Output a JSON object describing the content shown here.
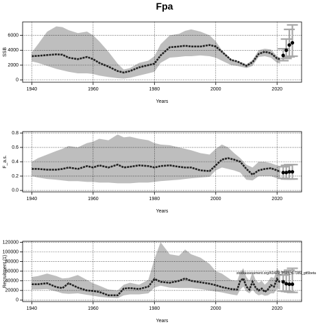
{
  "figure": {
    "title": "Fpa"
  },
  "chart_data": [
    {
      "type": "line",
      "title": "Fpa",
      "xlabel": "Years",
      "ylabel": "SSB",
      "xlim": [
        1937,
        2028
      ],
      "ylim": [
        -300,
        7800
      ],
      "xticks": [
        1940,
        1960,
        1980,
        2000,
        2020
      ],
      "yticks": [
        0,
        2000,
        4000,
        6000
      ],
      "ytick_labels": [
        "0",
        "2000",
        "4000",
        "6000"
      ],
      "grid": true,
      "series": [
        {
          "role": "band",
          "color": "#bebebe",
          "x": [
            1940,
            1942,
            1945,
            1948,
            1950,
            1952,
            1955,
            1958,
            1960,
            1962,
            1965,
            1968,
            1970,
            1972,
            1975,
            1978,
            1980,
            1982,
            1985,
            1988,
            1990,
            1992,
            1995,
            1998,
            2000,
            2002,
            2005,
            2007,
            2009,
            2010,
            2012,
            2014,
            2016,
            2018,
            2020,
            2021
          ],
          "upper": [
            3700,
            4800,
            6500,
            7200,
            7100,
            6700,
            6300,
            6500,
            6000,
            5200,
            3800,
            2200,
            1400,
            1600,
            2300,
            2600,
            3200,
            4800,
            6000,
            6200,
            6600,
            6800,
            6500,
            6000,
            5200,
            4000,
            2800,
            2500,
            2300,
            2100,
            2700,
            4000,
            4200,
            4100,
            3200,
            3000
          ],
          "lower": [
            2500,
            2300,
            1900,
            1500,
            1300,
            1100,
            900,
            900,
            800,
            600,
            400,
            250,
            200,
            300,
            600,
            900,
            1100,
            2300,
            3000,
            3100,
            3200,
            3200,
            3300,
            3200,
            3000,
            2600,
            2000,
            1900,
            1700,
            1600,
            1900,
            3100,
            3200,
            3000,
            2300,
            2200
          ]
        },
        {
          "role": "estimate",
          "color": "#222222",
          "x": [
            1940,
            1942,
            1945,
            1948,
            1950,
            1952,
            1955,
            1958,
            1960,
            1962,
            1965,
            1968,
            1970,
            1972,
            1975,
            1978,
            1980,
            1982,
            1985,
            1988,
            1990,
            1992,
            1995,
            1998,
            2000,
            2002,
            2005,
            2007,
            2009,
            2010,
            2012,
            2014,
            2016,
            2018,
            2020,
            2021
          ],
          "y": [
            3200,
            3250,
            3350,
            3450,
            3400,
            3000,
            2800,
            3100,
            2800,
            2300,
            1800,
            1200,
            1000,
            1200,
            1700,
            2000,
            2200,
            3300,
            4400,
            4500,
            4600,
            4500,
            4500,
            4700,
            4500,
            3800,
            2700,
            2500,
            2100,
            1900,
            2400,
            3500,
            3800,
            3600,
            2900,
            2800
          ]
        },
        {
          "role": "projection",
          "color": "#000000",
          "x": [
            2022,
            2023,
            2024,
            2025
          ],
          "y": [
            3300,
            4000,
            4700,
            5000
          ],
          "err_low": [
            2600,
            2900,
            3100,
            3200
          ],
          "err_high": [
            4200,
            5500,
            6800,
            7400
          ]
        }
      ]
    },
    {
      "type": "line",
      "xlabel": "Years",
      "ylabel": "F_a.s.",
      "xlim": [
        1937,
        2028
      ],
      "ylim": [
        -0.02,
        0.82
      ],
      "xticks": [
        1940,
        1960,
        1980,
        2000,
        2020
      ],
      "yticks": [
        0.0,
        0.2,
        0.4,
        0.6,
        0.8
      ],
      "ytick_labels": [
        "0.0",
        "0.2",
        "0.4",
        "0.6",
        "0.8"
      ],
      "grid": true,
      "series": [
        {
          "role": "band",
          "color": "#bebebe",
          "x": [
            1940,
            1942,
            1945,
            1948,
            1950,
            1952,
            1955,
            1958,
            1960,
            1962,
            1965,
            1968,
            1970,
            1972,
            1975,
            1978,
            1980,
            1982,
            1985,
            1988,
            1990,
            1992,
            1995,
            1998,
            2000,
            2002,
            2004,
            2006,
            2008,
            2010,
            2012,
            2014,
            2016,
            2018,
            2020,
            2021
          ],
          "upper": [
            0.4,
            0.45,
            0.5,
            0.55,
            0.58,
            0.62,
            0.6,
            0.66,
            0.68,
            0.72,
            0.7,
            0.78,
            0.74,
            0.75,
            0.72,
            0.7,
            0.66,
            0.64,
            0.63,
            0.6,
            0.58,
            0.56,
            0.52,
            0.5,
            0.58,
            0.64,
            0.6,
            0.52,
            0.45,
            0.36,
            0.32,
            0.4,
            0.4,
            0.38,
            0.35,
            0.34
          ],
          "lower": [
            0.2,
            0.18,
            0.16,
            0.15,
            0.14,
            0.13,
            0.13,
            0.12,
            0.12,
            0.11,
            0.11,
            0.1,
            0.1,
            0.1,
            0.11,
            0.11,
            0.12,
            0.13,
            0.14,
            0.15,
            0.16,
            0.17,
            0.18,
            0.19,
            0.28,
            0.32,
            0.3,
            0.28,
            0.25,
            0.15,
            0.14,
            0.2,
            0.2,
            0.2,
            0.17,
            0.16
          ]
        },
        {
          "role": "estimate",
          "color": "#222222",
          "x": [
            1940,
            1942,
            1945,
            1948,
            1950,
            1952,
            1955,
            1958,
            1960,
            1962,
            1965,
            1968,
            1970,
            1972,
            1975,
            1978,
            1980,
            1982,
            1985,
            1988,
            1990,
            1992,
            1995,
            1998,
            2000,
            2002,
            2004,
            2006,
            2008,
            2010,
            2012,
            2014,
            2016,
            2018,
            2020,
            2021
          ],
          "y": [
            0.3,
            0.3,
            0.29,
            0.29,
            0.3,
            0.32,
            0.3,
            0.34,
            0.32,
            0.35,
            0.32,
            0.36,
            0.32,
            0.33,
            0.35,
            0.34,
            0.32,
            0.34,
            0.35,
            0.33,
            0.32,
            0.32,
            0.28,
            0.27,
            0.35,
            0.43,
            0.45,
            0.43,
            0.4,
            0.3,
            0.22,
            0.28,
            0.3,
            0.31,
            0.28,
            0.26
          ]
        },
        {
          "role": "projection",
          "color": "#000000",
          "x": [
            2022,
            2023,
            2024,
            2025
          ],
          "y": [
            0.25,
            0.25,
            0.26,
            0.26
          ],
          "err_low": [
            0.17,
            0.16,
            0.16,
            0.16
          ],
          "err_high": [
            0.33,
            0.35,
            0.36,
            0.36
          ]
        }
      ]
    },
    {
      "type": "line",
      "xlabel": "Years",
      "ylabel": "Recruitment (1)",
      "xlim": [
        1937,
        2028
      ],
      "ylim": [
        -3000,
        122000
      ],
      "xticks": [
        1940,
        1960,
        1980,
        2000,
        2020
      ],
      "yticks": [
        0,
        20000,
        40000,
        60000,
        80000,
        100000,
        120000
      ],
      "ytick_labels": [
        "0",
        "20000",
        "40000",
        "60000",
        "80000",
        "100000",
        "120000"
      ],
      "grid": true,
      "annotation": "stockassessment.org/K0479_2023_r17389_gtt5beta",
      "series": [
        {
          "role": "band",
          "color": "#bebebe",
          "x": [
            1940,
            1942,
            1945,
            1948,
            1950,
            1952,
            1955,
            1958,
            1960,
            1962,
            1965,
            1968,
            1970,
            1972,
            1975,
            1978,
            1980,
            1982,
            1985,
            1988,
            1990,
            1992,
            1995,
            1998,
            2000,
            2002,
            2005,
            2007,
            2008,
            2009,
            2010,
            2011,
            2012,
            2013,
            2014,
            2015,
            2016,
            2017,
            2018,
            2019,
            2020,
            2021
          ],
          "upper": [
            48000,
            50000,
            55000,
            50000,
            45000,
            46000,
            52000,
            42000,
            35000,
            30000,
            22000,
            20000,
            32000,
            36000,
            32000,
            42000,
            85000,
            120000,
            95000,
            92000,
            105000,
            95000,
            88000,
            75000,
            60000,
            55000,
            42000,
            40000,
            58000,
            66000,
            48000,
            40000,
            58000,
            42000,
            36000,
            40000,
            32000,
            38000,
            48000,
            46000,
            66000,
            58000
          ],
          "lower": [
            22000,
            22000,
            23000,
            18000,
            14000,
            13000,
            14000,
            11000,
            9000,
            7000,
            5000,
            4000,
            10000,
            12000,
            12000,
            14000,
            26000,
            30000,
            26000,
            25000,
            25000,
            25000,
            23000,
            20000,
            18000,
            16000,
            12000,
            10000,
            22000,
            28000,
            18000,
            14000,
            22000,
            14000,
            10000,
            12000,
            9000,
            10000,
            14000,
            14000,
            24000,
            22000
          ]
        },
        {
          "role": "estimate",
          "color": "#222222",
          "x": [
            1940,
            1942,
            1945,
            1948,
            1950,
            1952,
            1955,
            1958,
            1960,
            1962,
            1965,
            1968,
            1970,
            1972,
            1975,
            1978,
            1980,
            1982,
            1985,
            1988,
            1990,
            1992,
            1995,
            1998,
            2000,
            2002,
            2005,
            2007,
            2008,
            2009,
            2010,
            2011,
            2012,
            2013,
            2014,
            2015,
            2016,
            2017,
            2018,
            2019,
            2020,
            2021
          ],
          "y": [
            33000,
            33000,
            35000,
            27000,
            25000,
            35000,
            26000,
            20000,
            19000,
            17000,
            10000,
            10000,
            24000,
            25000,
            23000,
            28000,
            44000,
            38000,
            36000,
            40000,
            45000,
            40000,
            37000,
            34000,
            31000,
            27000,
            23000,
            22000,
            40000,
            45000,
            28000,
            22000,
            38000,
            26000,
            20000,
            24000,
            17000,
            22000,
            31000,
            28000,
            44000,
            36000
          ]
        },
        {
          "role": "projection",
          "color": "#000000",
          "x": [
            2022,
            2023,
            2024,
            2025
          ],
          "y": [
            38000,
            34000,
            33000,
            33000
          ],
          "err_low": [
            19000,
            18000,
            17000,
            16000
          ],
          "err_high": [
            52000,
            58000,
            62000,
            66000
          ]
        }
      ]
    }
  ]
}
